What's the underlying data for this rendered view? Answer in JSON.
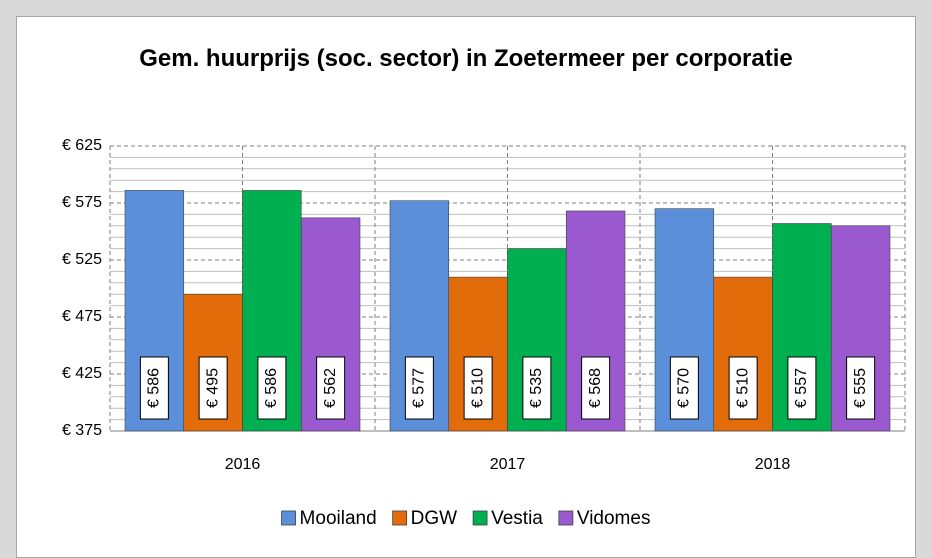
{
  "chart_data": {
    "type": "bar",
    "title": "Gem. huurprijs (soc. sector) in Zoetermeer per corporatie",
    "categories": [
      "2016",
      "2017",
      "2018"
    ],
    "series": [
      {
        "name": "Mooiland",
        "color": "#5b8fd9",
        "values": [
          586,
          577,
          570
        ],
        "value_labels": [
          "€ 586",
          "€ 577",
          "€ 570"
        ]
      },
      {
        "name": "DGW",
        "color": "#e36c0a",
        "values": [
          495,
          510,
          510
        ],
        "value_labels": [
          "€ 495",
          "€ 510",
          "€ 510"
        ]
      },
      {
        "name": "Vestia",
        "color": "#00b050",
        "values": [
          586,
          535,
          557
        ],
        "value_labels": [
          "€ 586",
          "€ 535",
          "€ 557"
        ]
      },
      {
        "name": "Vidomes",
        "color": "#9b59d0",
        "values": [
          562,
          568,
          555
        ],
        "value_labels": [
          "€ 562",
          "€ 568",
          "€ 555"
        ]
      }
    ],
    "ylim": [
      375,
      625
    ],
    "yticks": [
      {
        "value": 375,
        "label": "€ 375"
      },
      {
        "value": 425,
        "label": "€ 425"
      },
      {
        "value": 475,
        "label": "€ 475"
      },
      {
        "value": 525,
        "label": "€ 525"
      },
      {
        "value": 575,
        "label": "€ 575"
      },
      {
        "value": 625,
        "label": "€ 625"
      }
    ],
    "minor_yticks": [
      385,
      395,
      405,
      415,
      435,
      445,
      455,
      465,
      485,
      495,
      505,
      515,
      535,
      545,
      555,
      565,
      585,
      595,
      605,
      615
    ],
    "grid": true,
    "legend": "bottom"
  }
}
